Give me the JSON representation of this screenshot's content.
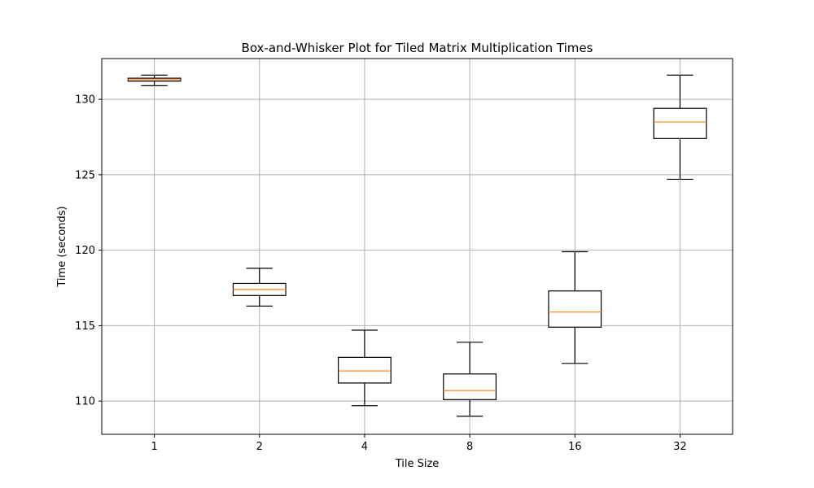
{
  "chart_data": {
    "type": "box",
    "title": "Box-and-Whisker Plot for Tiled Matrix Multiplication Times",
    "xlabel": "Tile Size",
    "ylabel": "Time (seconds)",
    "ylim": [
      107.8,
      132.7
    ],
    "yticks": [
      110,
      115,
      120,
      125,
      130
    ],
    "ytick_labels": [
      "110",
      "115",
      "120",
      "125",
      "130"
    ],
    "grid": true,
    "categories": [
      "1",
      "2",
      "4",
      "8",
      "16",
      "32"
    ],
    "boxes": [
      {
        "category": "1",
        "whisker_low": 130.9,
        "q1": 131.2,
        "median": 131.3,
        "q3": 131.4,
        "whisker_high": 131.6
      },
      {
        "category": "2",
        "whisker_low": 116.3,
        "q1": 117.0,
        "median": 117.4,
        "q3": 117.8,
        "whisker_high": 118.8
      },
      {
        "category": "4",
        "whisker_low": 109.7,
        "q1": 111.2,
        "median": 112.0,
        "q3": 112.9,
        "whisker_high": 114.7
      },
      {
        "category": "8",
        "whisker_low": 109.0,
        "q1": 110.1,
        "median": 110.7,
        "q3": 111.8,
        "whisker_high": 113.9
      },
      {
        "category": "16",
        "whisker_low": 112.5,
        "q1": 114.9,
        "median": 115.9,
        "q3": 117.3,
        "whisker_high": 119.9
      },
      {
        "category": "32",
        "whisker_low": 124.7,
        "q1": 127.4,
        "median": 128.5,
        "q3": 129.4,
        "whisker_high": 131.6
      }
    ],
    "colors": {
      "box": "#000000",
      "median": "#ff7f0e",
      "grid": "#b0b0b0"
    }
  }
}
